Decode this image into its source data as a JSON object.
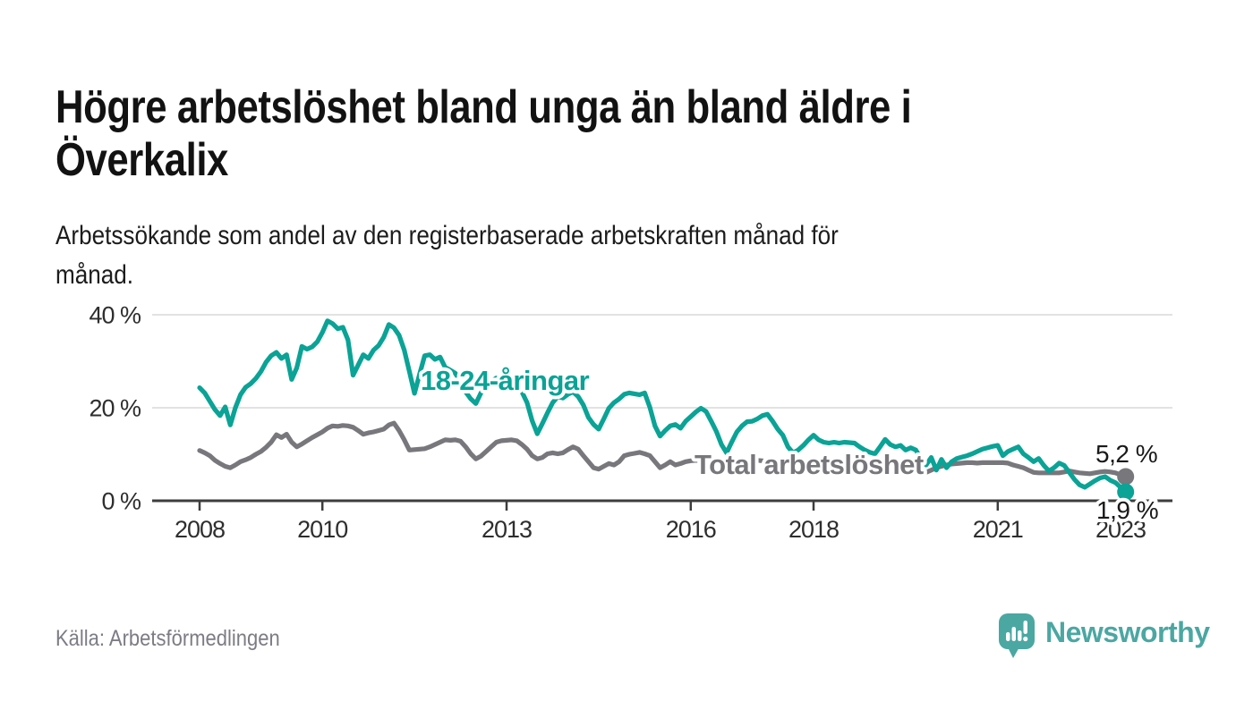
{
  "header": {
    "title_lines": [
      "Högre arbetslöshet bland unga än bland äldre i",
      "Överkalix"
    ],
    "lead_lines": [
      "Arbetssökande som andel av den registerbaserade arbetskraften månad för",
      "månad."
    ]
  },
  "footer": {
    "source": "Källa: Arbetsförmedlingen",
    "brand_name": "Newsworthy",
    "brand_icon": "speech-bubble-bar-chart-icon"
  },
  "colors": {
    "youth_line": "#0aa396",
    "total_line": "#77777c",
    "axis": "#3d3d3d",
    "grid": "#d9d9d9",
    "title_text": "#121212",
    "muted_text": "#7c7c85",
    "brand_teal": "#4ba7a2"
  },
  "chart_data": {
    "type": "line",
    "title": "Högre arbetslöshet bland unga än bland äldre i Överkalix",
    "subtitle": "Arbetssökande som andel av den registerbaserade arbetskraften månad för månad.",
    "unit": "%",
    "frequency": "monthly",
    "x_start_year": 2008,
    "x_end": "2023-02",
    "ylim": [
      0,
      42
    ],
    "grid": "horizontal",
    "legend": "inline-labels",
    "y_ticks": [
      {
        "value": 0,
        "label": "0 %"
      },
      {
        "value": 20,
        "label": "20 %"
      },
      {
        "value": 40,
        "label": "40 %"
      }
    ],
    "x_ticks": [
      {
        "year": 2008,
        "label": "2008"
      },
      {
        "year": 2010,
        "label": "2010"
      },
      {
        "year": 2013,
        "label": "2013"
      },
      {
        "year": 2016,
        "label": "2016"
      },
      {
        "year": 2018,
        "label": "2018"
      },
      {
        "year": 2021,
        "label": "2021"
      },
      {
        "year": 2023,
        "label": "2023"
      }
    ],
    "series": [
      {
        "name": "18-24-åringar",
        "inline_label": "18-24-åringar",
        "color": "#0aa396",
        "end_value": 1.9,
        "end_label": "1,9 %",
        "values": [
          24.3,
          23.2,
          21.4,
          19.6,
          18.3,
          20.2,
          16.3,
          20.0,
          22.8,
          24.4,
          25.2,
          26.3,
          27.8,
          29.8,
          31.2,
          31.9,
          30.6,
          31.4,
          26.1,
          28.6,
          33.2,
          32.6,
          33.1,
          34.2,
          36.2,
          38.7,
          38.1,
          37.0,
          37.3,
          34.6,
          27.0,
          29.2,
          31.4,
          30.6,
          32.4,
          33.4,
          35.2,
          37.9,
          37.2,
          35.6,
          32.4,
          27.8,
          23.1,
          27.2,
          31.2,
          31.4,
          30.4,
          30.9,
          28.7,
          28.1,
          27.4,
          25.6,
          23.4,
          21.9,
          20.9,
          23.2,
          24.6,
          25.6,
          26.4,
          26.0,
          25.6,
          26.1,
          25.1,
          23.4,
          21.1,
          17.2,
          14.4,
          16.6,
          18.9,
          21.1,
          22.4,
          22.1,
          22.9,
          23.4,
          22.4,
          20.6,
          17.9,
          16.4,
          15.4,
          17.6,
          19.9,
          21.1,
          21.9,
          22.9,
          23.2,
          23.0,
          22.8,
          23.2,
          20.1,
          16.1,
          13.9,
          15.1,
          16.1,
          16.4,
          15.6,
          17.1,
          18.1,
          19.1,
          19.9,
          19.2,
          17.1,
          14.9,
          12.1,
          10.3,
          12.6,
          14.8,
          16.1,
          17.0,
          17.1,
          17.6,
          18.3,
          18.6,
          17.1,
          15.4,
          14.1,
          11.6,
          10.3,
          10.9,
          11.9,
          13.1,
          14.1,
          13.1,
          12.6,
          12.4,
          12.6,
          12.4,
          12.6,
          12.5,
          12.4,
          11.6,
          10.9,
          10.4,
          10.1,
          11.6,
          13.2,
          12.1,
          11.6,
          11.9,
          10.9,
          11.4,
          10.9,
          9.1,
          7.7,
          9.3,
          6.6,
          8.9,
          7.1,
          8.4,
          9.1,
          9.4,
          9.7,
          10.1,
          10.6,
          11.1,
          11.4,
          11.7,
          11.9,
          9.7,
          10.6,
          11.1,
          11.6,
          10.1,
          9.3,
          8.4,
          9.1,
          7.6,
          6.4,
          7.1,
          8.1,
          7.6,
          6.1,
          4.6,
          3.4,
          2.9,
          3.6,
          4.3,
          4.9,
          5.2,
          4.4,
          3.9,
          2.9,
          1.9
        ]
      },
      {
        "name": "Total arbetslöshet",
        "inline_label": "Total arbetslöshet",
        "color": "#77777c",
        "end_value": 5.2,
        "end_label": "5,2 %",
        "values": [
          10.8,
          10.3,
          9.7,
          8.7,
          8.0,
          7.4,
          7.1,
          7.7,
          8.4,
          8.8,
          9.3,
          10.0,
          10.6,
          11.5,
          12.6,
          14.2,
          13.6,
          14.3,
          12.6,
          11.6,
          12.2,
          12.9,
          13.6,
          14.2,
          14.8,
          15.6,
          16.1,
          16.0,
          16.2,
          16.1,
          15.8,
          15.1,
          14.3,
          14.6,
          14.8,
          15.1,
          15.4,
          16.3,
          16.7,
          15.1,
          13.1,
          10.9,
          11.0,
          11.1,
          11.2,
          11.6,
          12.1,
          12.6,
          13.1,
          13.0,
          13.1,
          12.8,
          11.6,
          10.1,
          9.0,
          9.6,
          10.6,
          11.6,
          12.6,
          12.9,
          13.0,
          13.1,
          12.9,
          12.1,
          11.1,
          9.7,
          9.0,
          9.3,
          10.1,
          10.3,
          10.1,
          10.3,
          11.0,
          11.6,
          11.1,
          9.7,
          8.4,
          7.1,
          6.8,
          7.4,
          8.0,
          7.7,
          8.4,
          9.7,
          10.0,
          10.2,
          10.4,
          10.1,
          9.7,
          8.4,
          7.1,
          7.7,
          8.4,
          7.7,
          8.0,
          8.4,
          8.6,
          8.7,
          8.6,
          8.4,
          8.2,
          7.9,
          7.6,
          7.7,
          8.0,
          8.2,
          8.4,
          8.6,
          8.6,
          8.7,
          8.6,
          8.3,
          8.0,
          7.7,
          7.4,
          7.2,
          7.3,
          7.6,
          7.7,
          7.9,
          8.0,
          8.0,
          7.9,
          7.7,
          7.4,
          7.2,
          7.0,
          7.1,
          7.2,
          7.3,
          7.4,
          7.6,
          7.6,
          7.6,
          7.4,
          7.3,
          7.1,
          6.9,
          6.7,
          6.5,
          6.3,
          6.2,
          6.1,
          6.6,
          7.1,
          7.4,
          7.7,
          7.9,
          8.0,
          8.1,
          8.2,
          8.2,
          8.1,
          8.2,
          8.2,
          8.2,
          8.2,
          8.2,
          8.1,
          7.7,
          7.4,
          7.1,
          6.6,
          6.1,
          6.0,
          6.0,
          6.0,
          6.0,
          6.0,
          6.2,
          6.4,
          6.2,
          6.0,
          5.9,
          5.8,
          6.0,
          6.2,
          6.3,
          6.2,
          6.0,
          5.6,
          5.2
        ]
      }
    ]
  }
}
